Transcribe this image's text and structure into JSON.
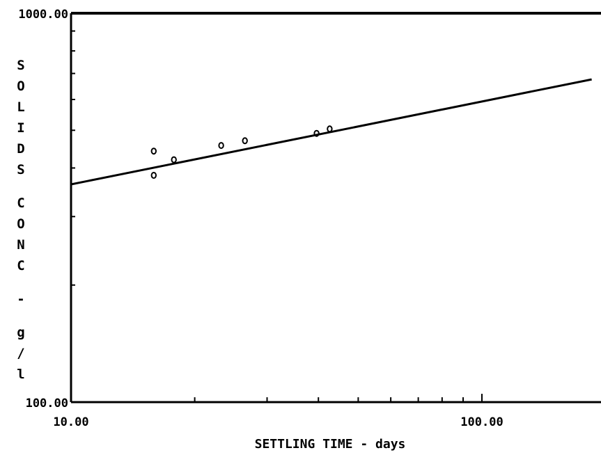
{
  "chart_data": {
    "type": "scatter",
    "title": "",
    "xlabel": "SETTLING TIME - days",
    "ylabel": "SOLIDS CONC - g/l",
    "xscale": "log",
    "yscale": "log",
    "xlim": [
      10,
      100
    ],
    "ylim": [
      100,
      1000
    ],
    "x_tick_labels": [
      "10.00",
      "100.00"
    ],
    "y_tick_labels": [
      "1000.00",
      "100.00"
    ],
    "series": [
      {
        "type": "scatter",
        "marker": "open-circle",
        "points": [
          {
            "x": 15.9,
            "y": 442
          },
          {
            "x": 15.9,
            "y": 383
          },
          {
            "x": 17.8,
            "y": 420
          },
          {
            "x": 23.2,
            "y": 457
          },
          {
            "x": 26.5,
            "y": 470
          },
          {
            "x": 39.6,
            "y": 491
          },
          {
            "x": 42.6,
            "y": 504
          }
        ]
      },
      {
        "type": "line",
        "style": "fit",
        "points": [
          {
            "x": 10,
            "y": 363
          },
          {
            "x": 185,
            "y": 676
          }
        ]
      }
    ],
    "grid": false,
    "legend": "none"
  },
  "colors": {
    "ink": "#000000",
    "background": "#ffffff"
  }
}
